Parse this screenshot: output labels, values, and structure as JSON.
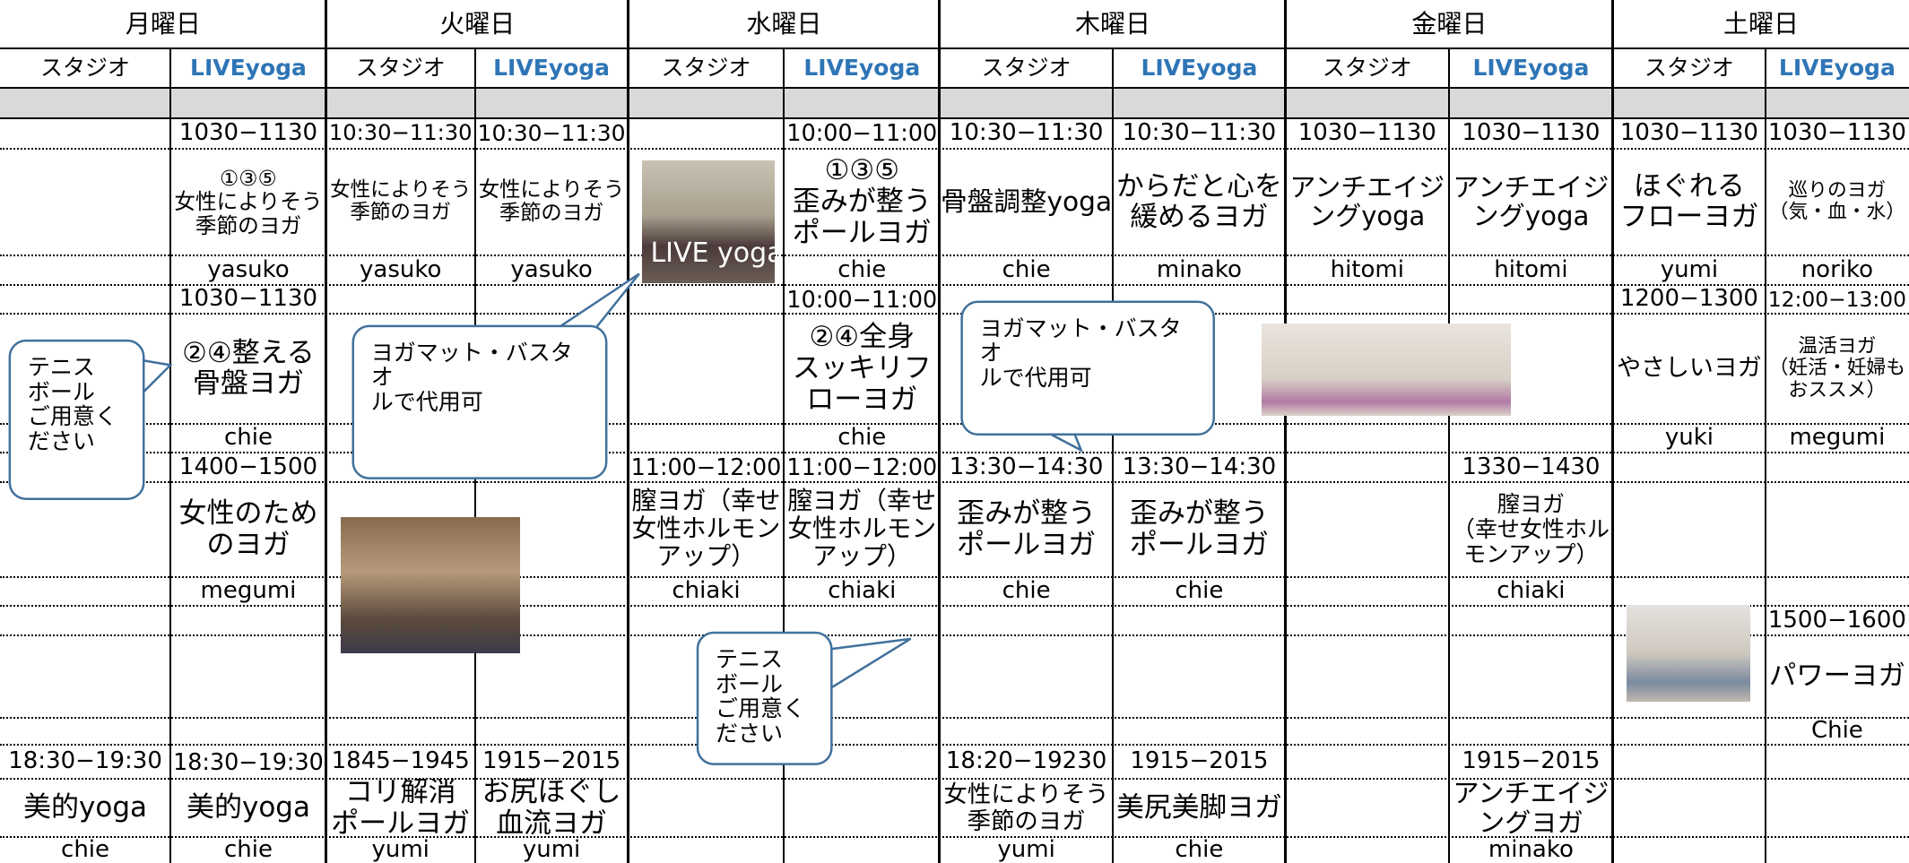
{
  "days": [
    "月曜日",
    "火曜日",
    "水曜日",
    "木曜日",
    "金曜日",
    "土曜日"
  ],
  "subheaders": [
    "スタジオ",
    "LIVEyoga",
    "スタジオ",
    "LIVEyoga",
    "スタジオ",
    "LIVEyoga",
    "スタジオ",
    "LIVEyoga",
    "スタジオ",
    "LIVEyoga",
    "スタジオ",
    "LIVEyoga"
  ],
  "table": {
    "rows": [
      [
        null,
        "1030−1130",
        "10:30−11:30",
        "10:30−11:30",
        null,
        "10:00−11:00",
        "10:30−11:30",
        "10:30−11:30",
        "1030−1130",
        "1030−1130",
        "1030−1130",
        "1030−1130"
      ],
      [
        null,
        "①③⑤\n女性によりそう\n季節のヨガ",
        "女性によりそう\n季節のヨガ",
        "女性によりそう\n季節のヨガ",
        null,
        "①③⑤\n歪みが整う\nポールヨガ",
        "骨盤調整yoga",
        "からだと心を\n緩めるヨガ",
        "アンチエイジ\nングyoga",
        "アンチエイジ\nングyoga",
        "ほぐれる\nフローヨガ",
        "巡りのヨガ\n（気・血・水）"
      ],
      [
        null,
        "yasuko",
        "yasuko",
        "yasuko",
        null,
        "chie",
        "chie",
        "minako",
        "hitomi",
        "hitomi",
        "yumi",
        "noriko"
      ],
      [
        null,
        "1030−1130",
        null,
        null,
        null,
        "10:00−11:00",
        null,
        null,
        null,
        null,
        "1200−1300",
        "12:00−13:00"
      ],
      [
        null,
        "②④整える\n骨盤ヨガ",
        null,
        null,
        null,
        "②④全身\nスッキリフ\nローヨガ",
        null,
        null,
        null,
        null,
        "やさしいヨガ",
        "温活ヨガ\n（妊活・妊婦も\nおススメ）"
      ],
      [
        null,
        "chie",
        null,
        null,
        null,
        "chie",
        null,
        null,
        null,
        null,
        "yuki",
        "megumi"
      ],
      [
        null,
        "1400−1500",
        null,
        null,
        "11:00−12:00",
        "11:00−12:00",
        "13:30−14:30",
        "13:30−14:30",
        null,
        "1330−1430",
        null,
        null
      ],
      [
        null,
        "女性のため\nのヨガ",
        null,
        null,
        "膣ヨガ（幸せ\n女性ホルモン\nアップ）",
        "膣ヨガ（幸せ\n女性ホルモン\nアップ）",
        "歪みが整う\nポールヨガ",
        "歪みが整う\nポールヨガ",
        null,
        "膣ヨガ\n（幸せ女性ホル\nモンアップ）",
        null,
        null
      ],
      [
        null,
        "megumi",
        null,
        null,
        "chiaki",
        "chiaki",
        "chie",
        "chie",
        null,
        "chiaki",
        null,
        null
      ],
      [
        null,
        null,
        null,
        null,
        null,
        null,
        null,
        null,
        null,
        null,
        null,
        "1500−1600"
      ],
      [
        null,
        null,
        null,
        null,
        null,
        null,
        null,
        null,
        null,
        null,
        null,
        "パワーヨガ"
      ],
      [
        null,
        null,
        null,
        null,
        null,
        null,
        null,
        null,
        null,
        null,
        null,
        "Chie"
      ],
      [
        "18:30−19:30",
        "18:30−19:30",
        "1845−1945",
        "1915−2015",
        null,
        null,
        "18:20−19230",
        "1915−2015",
        null,
        "1915−2015",
        null,
        null
      ],
      [
        "美的yoga",
        "美的yoga",
        "コリ解消\nポールヨガ",
        "お尻ほぐし\n血流ヨガ",
        null,
        null,
        "女性によりそう\n季節のヨガ",
        "美尻美脚ヨガ",
        null,
        "アンチエイジ\nングヨガ",
        null,
        null
      ],
      [
        "chie",
        "chie",
        "yumi",
        "yumi",
        null,
        null,
        "yumi",
        "chie",
        null,
        "minako",
        null,
        null
      ]
    ]
  },
  "callouts": [
    "テニス\nボール\nご用意く\nださい",
    "ヨガマット・バスタオ\nルで代用可",
    "ヨガマット・バスタオ\nルで代用可",
    "テニス\nボール\nご用意く\nださい"
  ],
  "photo_caption": "LIVE yoga"
}
